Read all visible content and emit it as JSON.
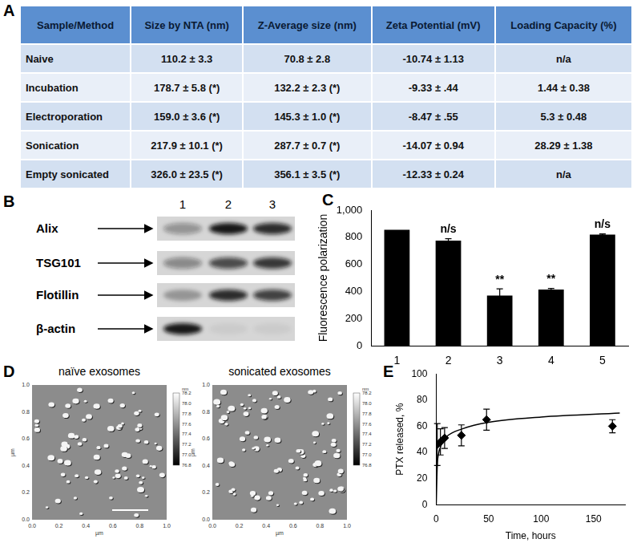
{
  "panels": [
    "A",
    "B",
    "C",
    "D",
    "E"
  ],
  "table": {
    "header": [
      "Sample/Method",
      "Size  by NTA (nm)",
      "Z-Average size (nm)",
      "Zeta Potential (mV)",
      "Loading Capacity (%)"
    ],
    "rows": [
      [
        "Naive",
        "110.2 ± 3.3",
        "70.8 ± 2.8",
        "-10.74 ± 1.13",
        "n/a"
      ],
      [
        "Incubation",
        "178.7 ± 5.8 (*)",
        "132.2 ± 2.3 (*)",
        "-9.33 ± .44",
        "1.44 ± 0.38"
      ],
      [
        "Electroporation",
        "159.0 ± 3.6 (*)",
        "145.3 ± 1.0 (*)",
        "-8.47 ± .55",
        "5.3 ± 0.48"
      ],
      [
        "Sonication",
        "217.9 ± 10.1 (*)",
        "287.7 ± 0.7 (*)",
        "-14.07 ± 0.94",
        "28.29 ± 1.38"
      ],
      [
        "Empty sonicated",
        "326.0 ± 23.5 (*)",
        "356.1 ±  3.5 (*)",
        "-12.33 ± 0.24",
        "n/a"
      ]
    ]
  },
  "blot": {
    "lanes": [
      "1",
      "2",
      "3"
    ],
    "bands": [
      {
        "label": "Alix",
        "intensity": [
          0.35,
          0.95,
          0.85
        ]
      },
      {
        "label": "TSG101",
        "intensity": [
          0.4,
          0.7,
          0.8
        ]
      },
      {
        "label": "Flotillin",
        "intensity": [
          0.3,
          0.85,
          0.75
        ]
      },
      {
        "label": "β-actin",
        "intensity": [
          0.95,
          0.05,
          0.05
        ]
      }
    ]
  },
  "afm": {
    "images": [
      {
        "title": "naïve exosomes"
      },
      {
        "title": "sonicated exosomes"
      }
    ],
    "axis_ticks": [
      "0.0",
      "0.2",
      "0.4",
      "0.6",
      "0.8",
      "1.0"
    ],
    "axis_unit": "µm",
    "colorbar_ticks": [
      "78.2",
      "78.0",
      "77.8",
      "77.6",
      "77.4",
      "77.2",
      "77.0",
      "76.8"
    ],
    "colorbar_unit": "nm"
  },
  "chart_data": [
    {
      "type": "bar",
      "categories": [
        "1",
        "2",
        "3",
        "4",
        "5"
      ],
      "values": [
        855,
        775,
        370,
        415,
        820
      ],
      "errors": [
        0,
        15,
        50,
        8,
        5
      ],
      "annotations": [
        null,
        "n/s",
        "**",
        "**",
        "n/s"
      ],
      "color": "#000000",
      "ylim": [
        0,
        1000
      ],
      "yticks": [
        0,
        200,
        400,
        600,
        800,
        1000
      ],
      "y_label": "Fluorescence polarization",
      "grid": false
    },
    {
      "type": "scatter",
      "x_label": "Time, hours",
      "y_label": "PTX released, %",
      "xlim": [
        0,
        180
      ],
      "xticks": [
        0,
        50,
        100,
        150
      ],
      "ylim": [
        0,
        100
      ],
      "yticks": [
        0,
        20,
        40,
        60,
        80,
        100
      ],
      "grid": false,
      "series": [
        {
          "type": "scatter",
          "marker": "diamond",
          "color": "#000000",
          "x": [
            1,
            4,
            8,
            24,
            48,
            168
          ],
          "values": [
            46,
            48,
            51,
            53,
            65,
            60
          ],
          "errors": [
            16,
            10,
            8,
            8,
            8,
            5
          ]
        },
        {
          "type": "line",
          "line_style": "solid",
          "color": "#000000",
          "x": [
            0,
            1,
            2,
            5,
            10,
            25,
            50,
            100,
            175
          ],
          "values": [
            0,
            30,
            38,
            46,
            52,
            58,
            63,
            67,
            70
          ]
        }
      ]
    }
  ]
}
